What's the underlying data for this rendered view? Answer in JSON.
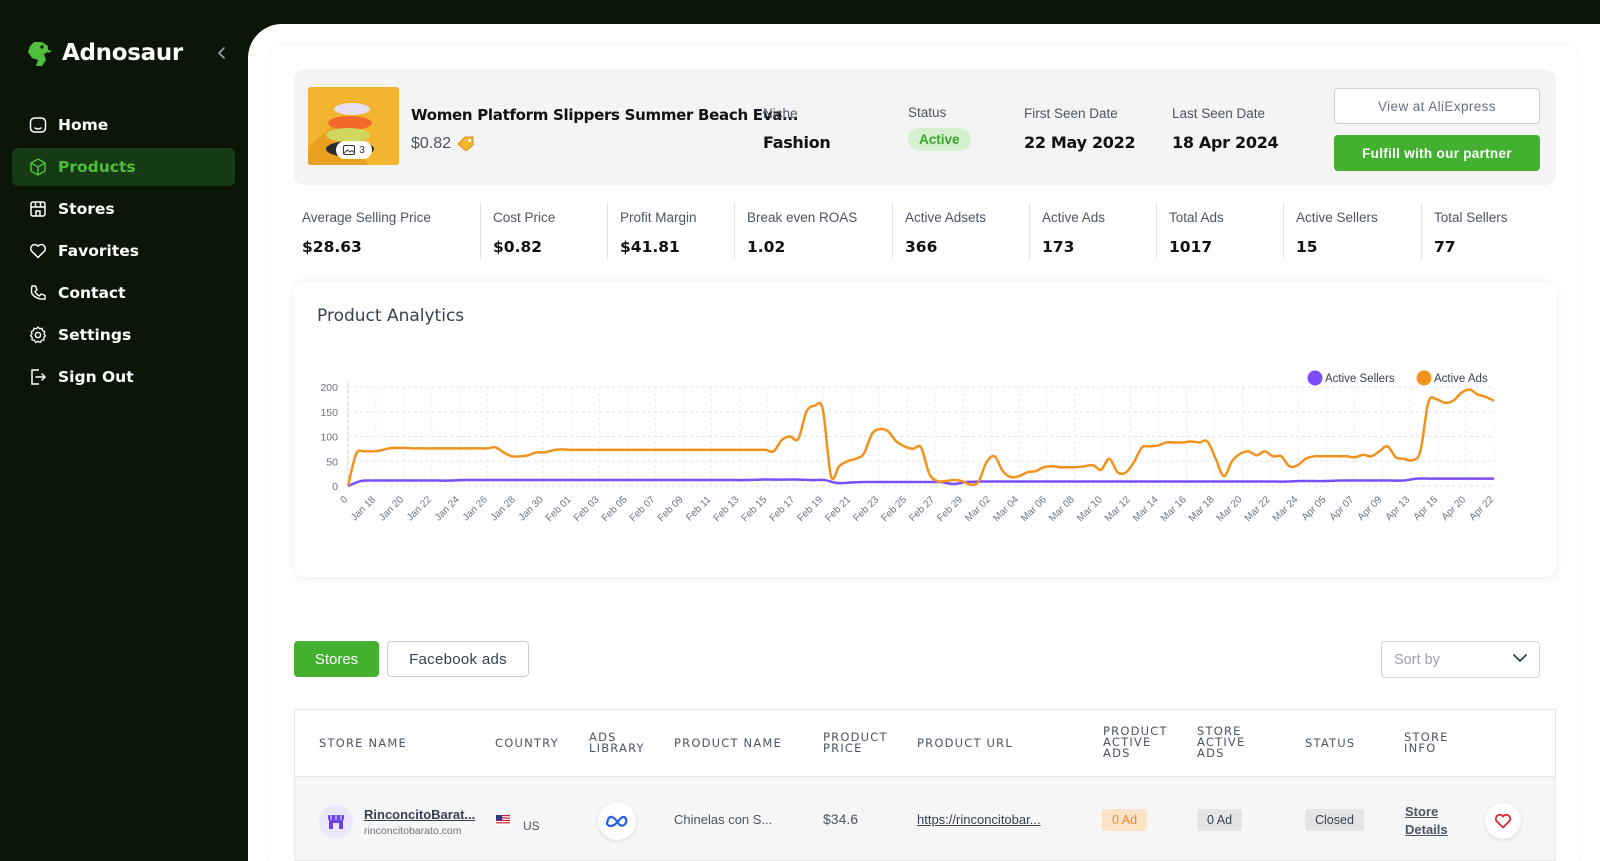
{
  "app": {
    "name": "Adnosaur"
  },
  "sidebar": {
    "items": [
      {
        "label": "Home",
        "icon": "home-icon"
      },
      {
        "label": "Products",
        "icon": "box-icon",
        "active": true
      },
      {
        "label": "Stores",
        "icon": "store-icon"
      },
      {
        "label": "Favorites",
        "icon": "heart-icon"
      },
      {
        "label": "Contact",
        "icon": "phone-icon"
      },
      {
        "label": "Settings",
        "icon": "gear-icon"
      },
      {
        "label": "Sign Out",
        "icon": "sign-out-icon"
      }
    ]
  },
  "product": {
    "title": "Women Platform Slippers Summer Beach Eva...",
    "price": "$0.82",
    "image_count": "3",
    "niche_label": "Niche",
    "niche": "Fashion",
    "status_label": "Status",
    "status": "Active",
    "first_seen_label": "First Seen Date",
    "first_seen": "22 May 2022",
    "last_seen_label": "Last Seen Date",
    "last_seen": "18 Apr 2024",
    "view_button": "View at AliExpress",
    "fulfill_button": "Fulfill with our partner"
  },
  "stats": [
    {
      "label": "Average Selling Price",
      "value": "$28.63"
    },
    {
      "label": "Cost Price",
      "value": "$0.82"
    },
    {
      "label": "Profit Margin",
      "value": "$41.81"
    },
    {
      "label": "Break even ROAS",
      "value": "1.02"
    },
    {
      "label": "Active Adsets",
      "value": "366"
    },
    {
      "label": "Active Ads",
      "value": "173"
    },
    {
      "label": "Total Ads",
      "value": "1017"
    },
    {
      "label": "Active Sellers",
      "value": "15"
    },
    {
      "label": "Total Sellers",
      "value": "77"
    }
  ],
  "analytics": {
    "title": "Product Analytics"
  },
  "chart_data": {
    "type": "line",
    "title": "Product Analytics",
    "ylim": [
      0,
      200
    ],
    "yticks": [
      "200",
      "150",
      "100",
      "50",
      "0"
    ],
    "x_labels": [
      "0",
      "Jan 18",
      "Jan 20",
      "Jan 22",
      "Jan 24",
      "Jan 26",
      "Jan 28",
      "Jan 30",
      "Feb 01",
      "Feb 03",
      "Feb 05",
      "Feb 07",
      "Feb 09",
      "Feb 11",
      "Feb 13",
      "Feb 15",
      "Feb 17",
      "Feb 19",
      "Feb 21",
      "Feb 23",
      "Feb 25",
      "Feb 27",
      "Feb 29",
      "Mar 02",
      "Mar 04",
      "Mar 06",
      "Mar 08",
      "Mar 10",
      "Mar 12",
      "Mar 14",
      "Mar 16",
      "Mar 18",
      "Mar 20",
      "Mar 22",
      "Mar 24",
      "Apr 05",
      "Apr 07",
      "Apr 09",
      "Apr 13",
      "Apr 15",
      "Apr 20",
      "Apr 22"
    ],
    "grid": true,
    "legend_position": "top-right",
    "series": [
      {
        "name": "Active Sellers",
        "color": "#7c4dff",
        "values": [
          0,
          10,
          11,
          11,
          11,
          11,
          11,
          11,
          11,
          12,
          12,
          12,
          12,
          12,
          12,
          12,
          12,
          12,
          12,
          12,
          12,
          12,
          12,
          12,
          12,
          12,
          12,
          12,
          12,
          12,
          12,
          12,
          13,
          13,
          13,
          13,
          12,
          12,
          6,
          7,
          8,
          8,
          8,
          8,
          8,
          8,
          8,
          4,
          8,
          9,
          9,
          9,
          9,
          9,
          9,
          9,
          9,
          9,
          9,
          9,
          9,
          9,
          9,
          9,
          9,
          9,
          9,
          9,
          9,
          9,
          9,
          9,
          9,
          9,
          10,
          10,
          10,
          11,
          11,
          11,
          11,
          11,
          11,
          15,
          15,
          15,
          15,
          15,
          15,
          15
        ]
      },
      {
        "name": "Active Ads",
        "color": "#f0931e",
        "values": [
          0,
          65,
          70,
          70,
          72,
          76,
          77,
          77,
          76,
          76,
          76,
          76,
          76,
          76,
          76,
          76,
          76,
          76,
          78,
          68,
          60,
          60,
          62,
          68,
          68,
          72,
          74,
          73,
          73,
          73,
          73,
          73,
          73,
          73,
          73,
          73,
          73,
          73,
          73,
          73,
          73,
          73,
          73,
          73,
          73,
          73,
          73,
          73,
          73,
          73,
          73,
          73,
          70,
          93,
          100,
          95,
          150,
          162,
          155,
          20,
          40,
          50,
          55,
          65,
          105,
          115,
          110,
          90,
          80,
          75,
          78,
          25,
          10,
          10,
          12,
          10,
          3,
          8,
          48,
          60,
          30,
          18,
          20,
          28,
          30,
          38,
          40,
          38,
          38,
          38,
          40,
          42,
          33,
          55,
          28,
          27,
          48,
          78,
          80,
          82,
          88,
          88,
          88,
          90,
          88,
          90,
          55,
          20,
          50,
          65,
          70,
          62,
          70,
          60,
          60,
          40,
          42,
          55,
          60,
          60,
          60,
          60,
          60,
          58,
          63,
          60,
          70,
          80,
          58,
          55,
          52,
          70,
          170,
          175,
          168,
          172,
          188,
          195,
          185,
          180,
          172
        ]
      }
    ]
  },
  "tabs": {
    "stores": "Stores",
    "facebook": "Facebook ads"
  },
  "sort": {
    "placeholder": "Sort by"
  },
  "table": {
    "headers": {
      "store_name": "STORE NAME",
      "country": "COUNTRY",
      "ads_library": "ADS LIBRARY",
      "product_name": "PRODUCT NAME",
      "product_price": "PRODUCT PRICE",
      "product_url": "PRODUCT URL",
      "product_active_ads": "PRODUCT ACTIVE ADS",
      "store_active_ads": "STORE ACTIVE ADS",
      "status": "STATUS",
      "store_info": "STORE INFO"
    },
    "rows": [
      {
        "store_name": "RinconcitoBarat...",
        "store_domain": "rinconcitobarato.com",
        "country": "US",
        "product_name": "Chinelas con S...",
        "product_price": "$34.6",
        "product_url": "https://rinconcitobar...",
        "product_active_ads": "0 Ad",
        "store_active_ads": "0 Ad",
        "status": "Closed",
        "store_info": "Store Details"
      }
    ]
  }
}
